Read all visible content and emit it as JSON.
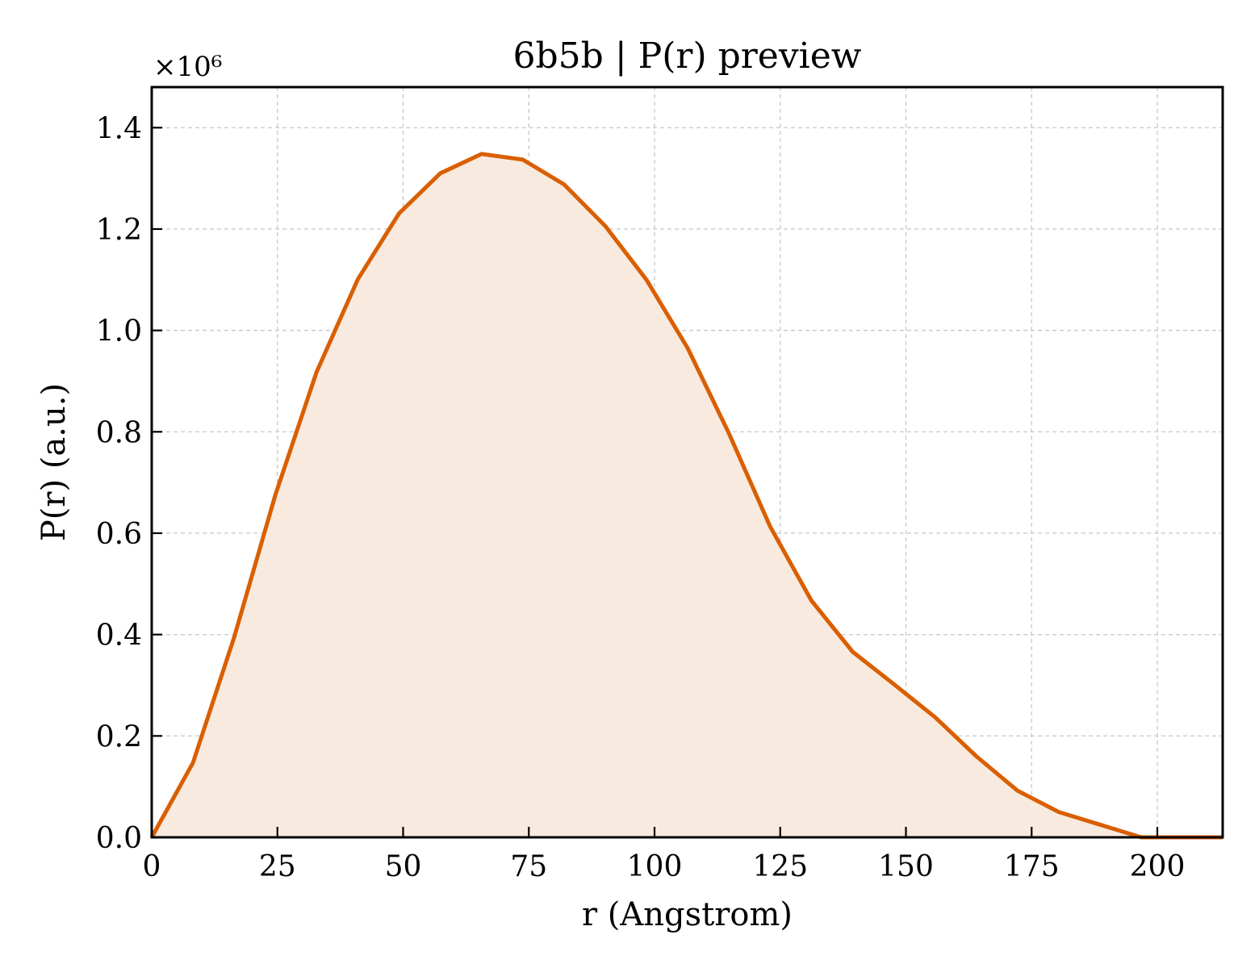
{
  "chart_data": {
    "type": "area",
    "title": "6b5b | P(r) preview",
    "xlabel": "r (Angstrom)",
    "ylabel": "P(r) (a.u.)",
    "y_multiplier_label": "×10⁶",
    "y_multiplier": 1000000,
    "xlim": [
      0,
      213
    ],
    "ylim": [
      0,
      1.48
    ],
    "x_ticks": [
      0,
      25,
      50,
      75,
      100,
      125,
      150,
      175,
      200
    ],
    "y_ticks": [
      0.0,
      0.2,
      0.4,
      0.6,
      0.8,
      1.0,
      1.2,
      1.4
    ],
    "y_tick_labels": [
      "0.0",
      "0.2",
      "0.4",
      "0.6",
      "0.8",
      "1.0",
      "1.2",
      "1.4"
    ],
    "grid": true,
    "colors": {
      "line": "#d95f02",
      "fill": "#f9eadf"
    },
    "series": [
      {
        "x": [
          0,
          8.2,
          16.4,
          24.6,
          32.8,
          41.0,
          49.2,
          57.4,
          65.6,
          73.8,
          82.0,
          90.2,
          98.4,
          106.6,
          114.8,
          123.0,
          131.2,
          139.4,
          147.6,
          155.8,
          164.0,
          172.2,
          180.4,
          188.6,
          196.8,
          205.0,
          213.0
        ],
        "y": [
          0.0,
          0.147,
          0.395,
          0.676,
          0.918,
          1.101,
          1.231,
          1.31,
          1.348,
          1.337,
          1.288,
          1.206,
          1.1,
          0.965,
          0.797,
          0.613,
          0.467,
          0.366,
          0.302,
          0.237,
          0.16,
          0.092,
          0.05,
          0.025,
          0.0,
          0.0,
          0.0
        ]
      }
    ]
  }
}
